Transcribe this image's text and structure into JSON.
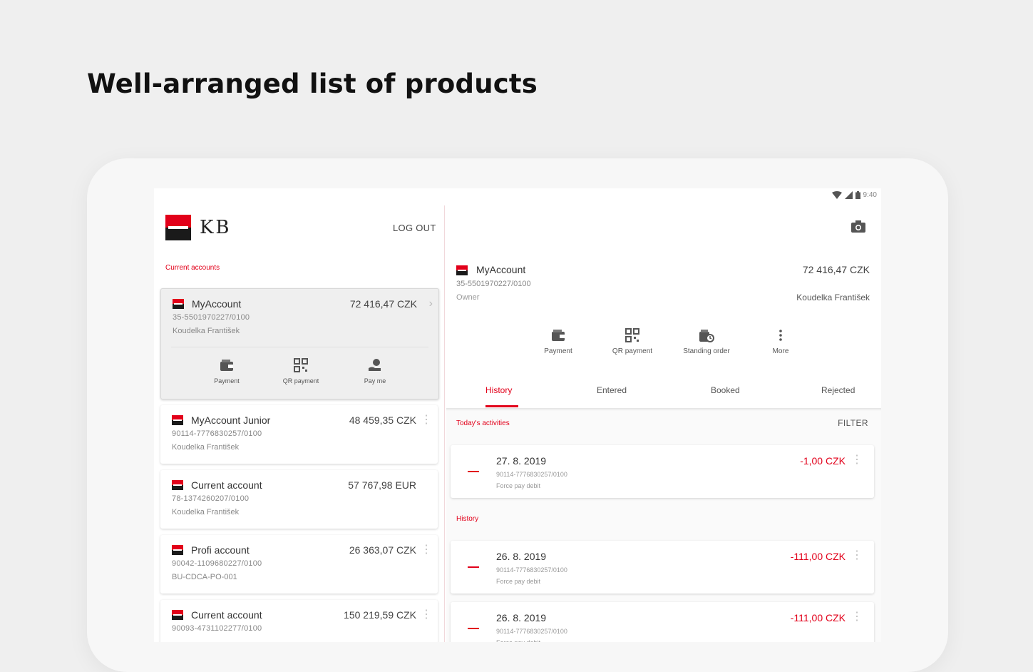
{
  "headline": "Well-arranged list of products",
  "status_bar": {
    "time": "9:40",
    "icons": [
      "wifi-icon",
      "signal-icon",
      "battery-icon"
    ]
  },
  "left_pane": {
    "brand": "KB",
    "logout_label": "LOG OUT",
    "section_label": "Current accounts",
    "accounts": [
      {
        "name": "MyAccount",
        "amount": "72 416,47 CZK",
        "iban": "35-5501970227/0100",
        "owner": "Koudelka František",
        "selected": true,
        "actions": [
          {
            "label": "Payment",
            "icon": "wallet-icon"
          },
          {
            "label": "QR payment",
            "icon": "qr-code-icon"
          },
          {
            "label": "Pay me",
            "icon": "hand-coins-icon"
          }
        ]
      },
      {
        "name": "MyAccount Junior",
        "amount": "48 459,35 CZK",
        "iban": "90114-7776830257/0100",
        "owner": "Koudelka František"
      },
      {
        "name": "Current account",
        "amount": "57 767,98 EUR",
        "iban": "78-1374260207/0100",
        "owner": "Koudelka František"
      },
      {
        "name": "Profi account",
        "amount": "26 363,07 CZK",
        "iban": "90042-1109680227/0100",
        "owner": "BU-CDCA-PO-001"
      },
      {
        "name": "Current account",
        "amount": "150 219,59 CZK",
        "iban": "90093-4731102277/0100",
        "owner": ""
      }
    ]
  },
  "right_pane": {
    "account": {
      "name": "MyAccount",
      "amount": "72 416,47 CZK",
      "iban": "35-5501970227/0100",
      "role": "Owner",
      "owner": "Koudelka František"
    },
    "actions": [
      {
        "label": "Payment",
        "icon": "wallet-icon"
      },
      {
        "label": "QR payment",
        "icon": "qr-code-icon"
      },
      {
        "label": "Standing order",
        "icon": "standing-order-icon"
      },
      {
        "label": "More",
        "icon": "more-vertical-icon"
      }
    ],
    "tabs": [
      "History",
      "Entered",
      "Booked",
      "Rejected"
    ],
    "active_tab": "History",
    "todays_label": "Today's activities",
    "filter_label": "FILTER",
    "history_label": "History",
    "transactions": [
      {
        "date": "27. 8. 2019",
        "iban": "90114-7776830257/0100",
        "type": "Force pay debit",
        "amount": "-1,00 CZK"
      },
      {
        "date": "26. 8. 2019",
        "iban": "90114-7776830257/0100",
        "type": "Force pay debit",
        "amount": "-111,00 CZK"
      },
      {
        "date": "26. 8. 2019",
        "iban": "90114-7776830257/0100",
        "type": "Force pay debit",
        "amount": "-111,00 CZK"
      }
    ]
  },
  "colors": {
    "accent": "#e2001a",
    "brand_black": "#1a1a1a",
    "background": "#efefef"
  }
}
